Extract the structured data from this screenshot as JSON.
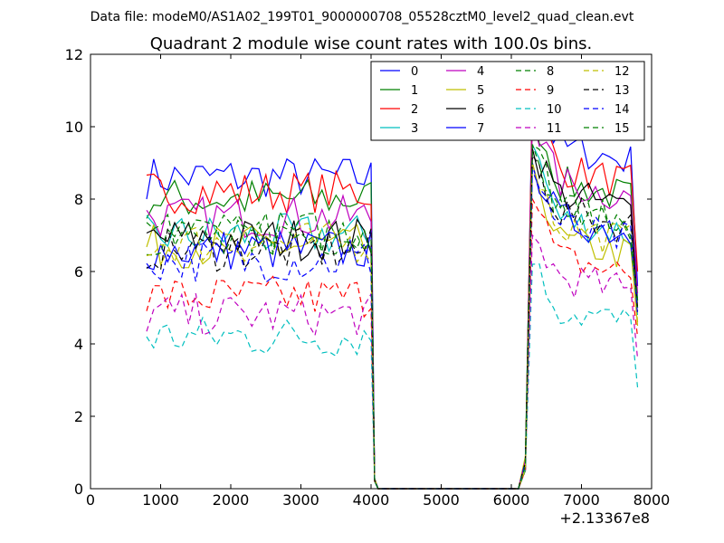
{
  "chart_data": {
    "type": "line",
    "suptitle": "Data file: modeM0/AS1A02_199T01_9000000708_05528cztM0_level2_quad_clean.evt",
    "title": "Quadrant 2 module wise count rates with 100.0s bins.",
    "xlabel": "",
    "ylabel": "",
    "x_offset_label": "+2.13367e8",
    "xlim": [
      0,
      8000
    ],
    "ylim": [
      0,
      12
    ],
    "x_ticks": [
      0,
      1000,
      2000,
      3000,
      4000,
      5000,
      6000,
      7000,
      8000
    ],
    "y_ticks": [
      0,
      2,
      4,
      6,
      8,
      10,
      12
    ],
    "x_tick_labels": [
      "0",
      "1000",
      "2000",
      "3000",
      "4000",
      "5000",
      "6000",
      "7000",
      "8000"
    ],
    "y_tick_labels": [
      "0",
      "2",
      "4",
      "6",
      "8",
      "10",
      "12"
    ],
    "legend_location": "upper right",
    "x_segments": {
      "first_on": [
        800,
        4000
      ],
      "drop_end": 4050,
      "gap": [
        4100,
        6100
      ],
      "rise": [
        6200,
        6300
      ],
      "second_on": [
        6300,
        7800
      ]
    },
    "series": [
      {
        "name": "0",
        "color": "#0000ff",
        "dash": "solid",
        "first_level": 8.6,
        "second_peak": 11.0,
        "second_level": 9.6,
        "end_value": 5.6
      },
      {
        "name": "1",
        "color": "#008000",
        "dash": "solid",
        "first_level": 8.0,
        "second_peak": 10.5,
        "second_level": 8.6,
        "end_value": 5.2
      },
      {
        "name": "2",
        "color": "#ff0000",
        "dash": "solid",
        "first_level": 8.2,
        "second_peak": 10.8,
        "second_level": 9.0,
        "end_value": 6.0
      },
      {
        "name": "3",
        "color": "#00bfbf",
        "dash": "solid",
        "first_level": 7.0,
        "second_peak": 9.5,
        "second_level": 7.6,
        "end_value": 4.8
      },
      {
        "name": "4",
        "color": "#bf00bf",
        "dash": "solid",
        "first_level": 7.5,
        "second_peak": 10.2,
        "second_level": 8.6,
        "end_value": 5.4
      },
      {
        "name": "5",
        "color": "#bfbf00",
        "dash": "solid",
        "first_level": 6.7,
        "second_peak": 9.0,
        "second_level": 7.0,
        "end_value": 4.5
      },
      {
        "name": "6",
        "color": "#000000",
        "dash": "solid",
        "first_level": 6.9,
        "second_peak": 9.4,
        "second_level": 8.3,
        "end_value": 5.0
      },
      {
        "name": "7",
        "color": "#0000ff",
        "dash": "solid",
        "first_level": 6.6,
        "second_peak": 9.0,
        "second_level": 7.6,
        "end_value": 5.2
      },
      {
        "name": "8",
        "color": "#008000",
        "dash": "dashed",
        "first_level": 7.0,
        "second_peak": 9.5,
        "second_level": 7.9,
        "end_value": 5.0
      },
      {
        "name": "9",
        "color": "#ff0000",
        "dash": "dashed",
        "first_level": 5.3,
        "second_peak": 8.0,
        "second_level": 6.5,
        "end_value": 4.2
      },
      {
        "name": "10",
        "color": "#00bfbf",
        "dash": "dashed",
        "first_level": 4.2,
        "second_peak": 6.2,
        "second_level": 5.1,
        "end_value": 2.8
      },
      {
        "name": "11",
        "color": "#bf00bf",
        "dash": "dashed",
        "first_level": 4.8,
        "second_peak": 7.0,
        "second_level": 6.0,
        "end_value": 3.6
      },
      {
        "name": "12",
        "color": "#bfbf00",
        "dash": "dashed",
        "first_level": 6.8,
        "second_peak": 9.0,
        "second_level": 7.4,
        "end_value": 4.6
      },
      {
        "name": "13",
        "color": "#000000",
        "dash": "dashed",
        "first_level": 6.6,
        "second_peak": 9.2,
        "second_level": 7.8,
        "end_value": 4.9
      },
      {
        "name": "14",
        "color": "#0000ff",
        "dash": "dashed",
        "first_level": 6.3,
        "second_peak": 8.8,
        "second_level": 7.4,
        "end_value": 4.8
      },
      {
        "name": "15",
        "color": "#008000",
        "dash": "dashed",
        "first_level": 7.1,
        "second_peak": 9.5,
        "second_level": 8.0,
        "end_value": 5.2
      }
    ]
  }
}
